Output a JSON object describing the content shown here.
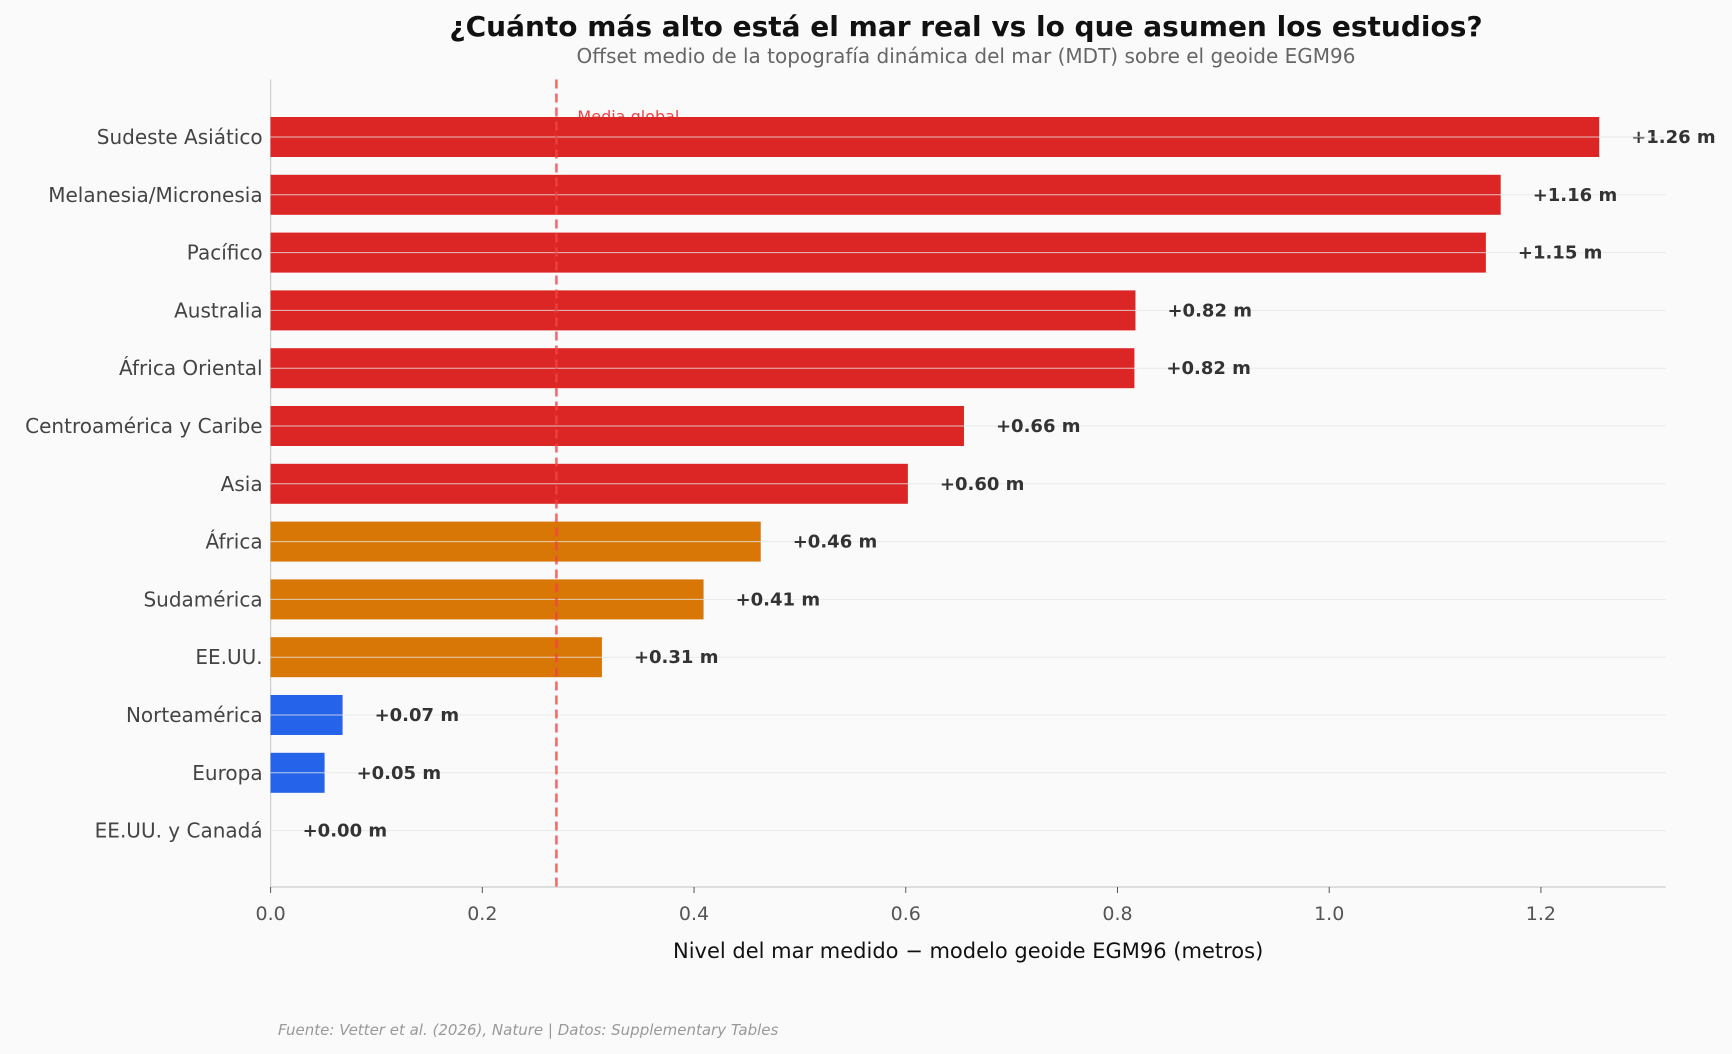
{
  "chart_data": {
    "type": "bar",
    "orientation": "horizontal",
    "title": "¿Cuánto más alto está el mar real vs lo que asumen los estudios?",
    "subtitle": "Offset medio de la topografía dinámica del mar (MDT) sobre el geoide EGM96",
    "xlabel": "Nivel del mar medido − modelo geoide EGM96 (metros)",
    "ylabel": "",
    "xlim": [
      0,
      1.32
    ],
    "xticks": [
      "0.0",
      "0.2",
      "0.4",
      "0.6",
      "0.8",
      "1.0",
      "1.2"
    ],
    "grid": "horizontal",
    "categories": [
      "Sudeste Asiático",
      "Melanesia/Micronesia",
      "Pacífico",
      "Australia",
      "África Oriental",
      "Centroamérica y Caribe",
      "Asia",
      "África",
      "Sudamérica",
      "EE.UU.",
      "Norteamérica",
      "Europa",
      "EE.UU. y Canadá"
    ],
    "values": [
      1.255,
      1.162,
      1.148,
      0.817,
      0.816,
      0.655,
      0.602,
      0.463,
      0.409,
      0.313,
      0.068,
      0.051,
      0.0
    ],
    "data_labels": [
      "+1.26 m",
      "+1.16 m",
      "+1.15 m",
      "+0.82 m",
      "+0.82 m",
      "+0.66 m",
      "+0.60 m",
      "+0.46 m",
      "+0.41 m",
      "+0.31 m",
      "+0.07 m",
      "+0.05 m",
      "+0.00 m"
    ],
    "bar_colors": [
      "#dc2626",
      "#dc2626",
      "#dc2626",
      "#dc2626",
      "#dc2626",
      "#dc2626",
      "#dc2626",
      "#d97706",
      "#d97706",
      "#d97706",
      "#2563eb",
      "#2563eb",
      "#2563eb"
    ],
    "reference_line": {
      "value": 0.27,
      "label": "Media global",
      "color": "#ef4444",
      "style": "dashed"
    },
    "source": "Fuente: Vetter et al. (2026), Nature | Datos: Supplementary Tables"
  }
}
